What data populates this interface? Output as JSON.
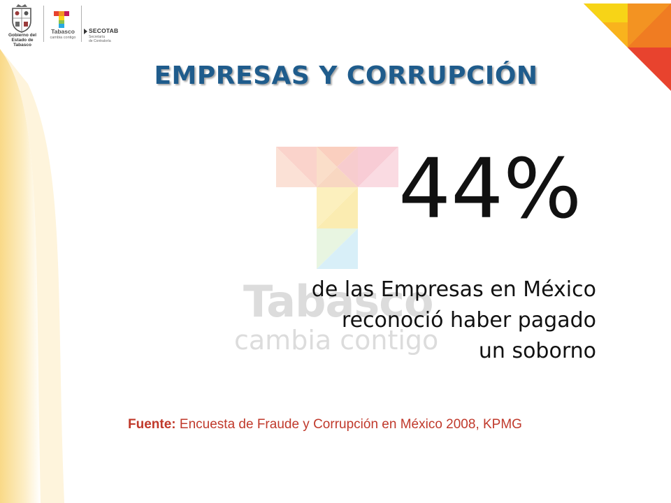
{
  "header": {
    "gobierno_line1": "Gobierno del",
    "gobierno_line2": "Estado de Tabasco",
    "tabasco_name": "Tabasco",
    "tabasco_sub": "cambia contigo",
    "secotab_name": "SECOTAB",
    "secotab_sub1": "Secretaría",
    "secotab_sub2": "de Contraloría"
  },
  "title": "EMPRESAS Y CORRUPCIÓN",
  "stat": {
    "value": "44%",
    "line1": "de las Empresas en México",
    "line2": "reconoció haber pagado",
    "line3": "un soborno"
  },
  "watermark": {
    "tabasco": "Tabasco",
    "cambia": "cambia contigo"
  },
  "source": {
    "label": "Fuente:",
    "text": " Encuesta de Fraude y Corrupción en México 2008, KPMG"
  },
  "colors": {
    "title": "#1f5c8c",
    "source": "#c0392b",
    "corner_red": "#e8432e",
    "corner_orange": "#f39322",
    "corner_yellow": "#f7d417",
    "background_wave": "#fbe7b0"
  }
}
